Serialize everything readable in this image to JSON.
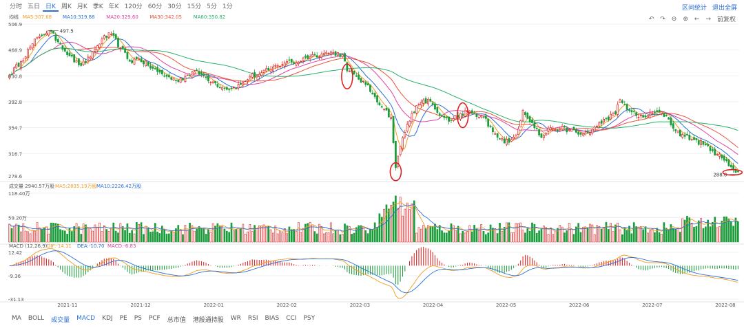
{
  "period_tabs": {
    "items": [
      "分时",
      "五日",
      "日K",
      "周K",
      "月K",
      "季K",
      "年K",
      "120分",
      "60分",
      "30分",
      "15分",
      "5分",
      "1分"
    ],
    "active": "日K"
  },
  "top_right": {
    "stats": "区间统计",
    "exit_fullscreen": "退出全屏"
  },
  "toolbar": {
    "adjust_label": "前复权"
  },
  "colors": {
    "up": "#e02020",
    "down": "#1a9c3a",
    "ma5": "#f39a1e",
    "ma10": "#2a6fd6",
    "ma20": "#e040a0",
    "ma30": "#e8553a",
    "ma60": "#28b06a",
    "grid": "#eef0f3",
    "axis_text": "#555555",
    "accent": "#2a6fd6",
    "highlight": "#e02020"
  },
  "chart_data": [
    {
      "type": "candlestick",
      "title": "均线",
      "legend": [
        {
          "name": "MA5",
          "value": "307.68",
          "color": "#f39a1e"
        },
        {
          "name": "MA10",
          "value": "319.88",
          "color": "#2a6fd6"
        },
        {
          "name": "MA20",
          "value": "329.60",
          "color": "#e040a0"
        },
        {
          "name": "MA30",
          "value": "342.05",
          "color": "#e8553a"
        },
        {
          "name": "MA60",
          "value": "350.82",
          "color": "#28b06a"
        }
      ],
      "y_ticks": [
        "506.9",
        "468.9",
        "430.8",
        "392.8",
        "354.7",
        "316.7",
        "278.6"
      ],
      "ylim": [
        278.6,
        506.9
      ],
      "x_labels": [
        "2021-11",
        "2021-12",
        "2022-01",
        "2022-02",
        "2022-03",
        "2022-04",
        "2022-05",
        "2022-06",
        "2022-07",
        "2022-08"
      ],
      "annotations": {
        "max": "497.5",
        "min": "288.0"
      },
      "waypoints": [
        [
          0,
          432
        ],
        [
          5,
          452
        ],
        [
          10,
          478
        ],
        [
          13,
          489
        ],
        [
          17,
          497.5
        ],
        [
          22,
          478
        ],
        [
          26,
          460
        ],
        [
          30,
          447
        ],
        [
          33,
          450
        ],
        [
          37,
          470
        ],
        [
          40,
          485
        ],
        [
          44,
          492
        ],
        [
          48,
          472
        ],
        [
          52,
          452
        ],
        [
          56,
          456
        ],
        [
          60,
          446
        ],
        [
          64,
          437
        ],
        [
          68,
          430
        ],
        [
          72,
          424
        ],
        [
          76,
          430
        ],
        [
          80,
          437
        ],
        [
          84,
          431
        ],
        [
          88,
          422
        ],
        [
          92,
          414
        ],
        [
          96,
          412
        ],
        [
          100,
          418
        ],
        [
          104,
          430
        ],
        [
          108,
          433
        ],
        [
          112,
          439
        ],
        [
          116,
          446
        ],
        [
          120,
          452
        ],
        [
          124,
          450
        ],
        [
          128,
          458
        ],
        [
          132,
          461
        ],
        [
          136,
          464
        ],
        [
          140,
          465
        ],
        [
          144,
          462
        ],
        [
          146,
          438
        ],
        [
          150,
          430
        ],
        [
          154,
          418
        ],
        [
          158,
          400
        ],
        [
          162,
          382
        ],
        [
          165,
          370
        ],
        [
          167,
          296
        ],
        [
          170,
          340
        ],
        [
          174,
          376
        ],
        [
          178,
          392
        ],
        [
          182,
          394
        ],
        [
          186,
          373
        ],
        [
          190,
          364
        ],
        [
          194,
          370
        ],
        [
          198,
          380
        ],
        [
          202,
          371
        ],
        [
          205,
          370
        ],
        [
          208,
          356
        ],
        [
          212,
          338
        ],
        [
          216,
          333
        ],
        [
          219,
          344
        ],
        [
          222,
          380
        ],
        [
          226,
          362
        ],
        [
          230,
          340
        ],
        [
          234,
          355
        ],
        [
          238,
          353
        ],
        [
          242,
          352
        ],
        [
          246,
          345
        ],
        [
          250,
          347
        ],
        [
          254,
          357
        ],
        [
          258,
          368
        ],
        [
          262,
          375
        ],
        [
          264,
          396
        ],
        [
          268,
          380
        ],
        [
          272,
          370
        ],
        [
          276,
          373
        ],
        [
          280,
          378
        ],
        [
          284,
          372
        ],
        [
          288,
          350
        ],
        [
          292,
          342
        ],
        [
          296,
          337
        ],
        [
          300,
          330
        ],
        [
          304,
          321
        ],
        [
          308,
          310
        ],
        [
          312,
          297
        ],
        [
          315,
          290
        ]
      ],
      "markers": [
        {
          "index": 146,
          "price": 430
        },
        {
          "index": 167,
          "price": 290
        },
        {
          "index": 196,
          "price": 373
        },
        {
          "index": 315,
          "price": 288
        }
      ]
    },
    {
      "type": "bar",
      "title": "成交量 2940.57万股",
      "legend": [
        {
          "name": "MA5",
          "value": "2835.19万股",
          "color": "#f39a1e"
        },
        {
          "name": "MA10",
          "value": "2226.42万股",
          "color": "#2a6fd6"
        }
      ],
      "y_ticks": [
        "118.40万",
        "59.20万"
      ],
      "ylim": [
        0,
        118.4
      ]
    },
    {
      "type": "macd",
      "title": "MACD (12,26,9)",
      "legend": [
        {
          "name": "DIF",
          "value": "-14.11",
          "color": "#f39a1e"
        },
        {
          "name": "DEA",
          "value": "-10.70",
          "color": "#2a6fd6"
        },
        {
          "name": "MACD",
          "value": "-6.83",
          "color": "#e040a0"
        }
      ],
      "y_ticks": [
        "12.42",
        "-9.36",
        "-31.13"
      ],
      "ylim": [
        -31.13,
        12.42
      ]
    }
  ],
  "bottom_tabs": {
    "items": [
      "MA",
      "BOLL",
      "成交量",
      "MACD",
      "KDJ",
      "PE",
      "PS",
      "PCF",
      "总市值",
      "港股通持股",
      "WR",
      "RSI",
      "BIAS",
      "CCI",
      "PSY"
    ],
    "active": [
      "成交量",
      "MACD"
    ]
  }
}
